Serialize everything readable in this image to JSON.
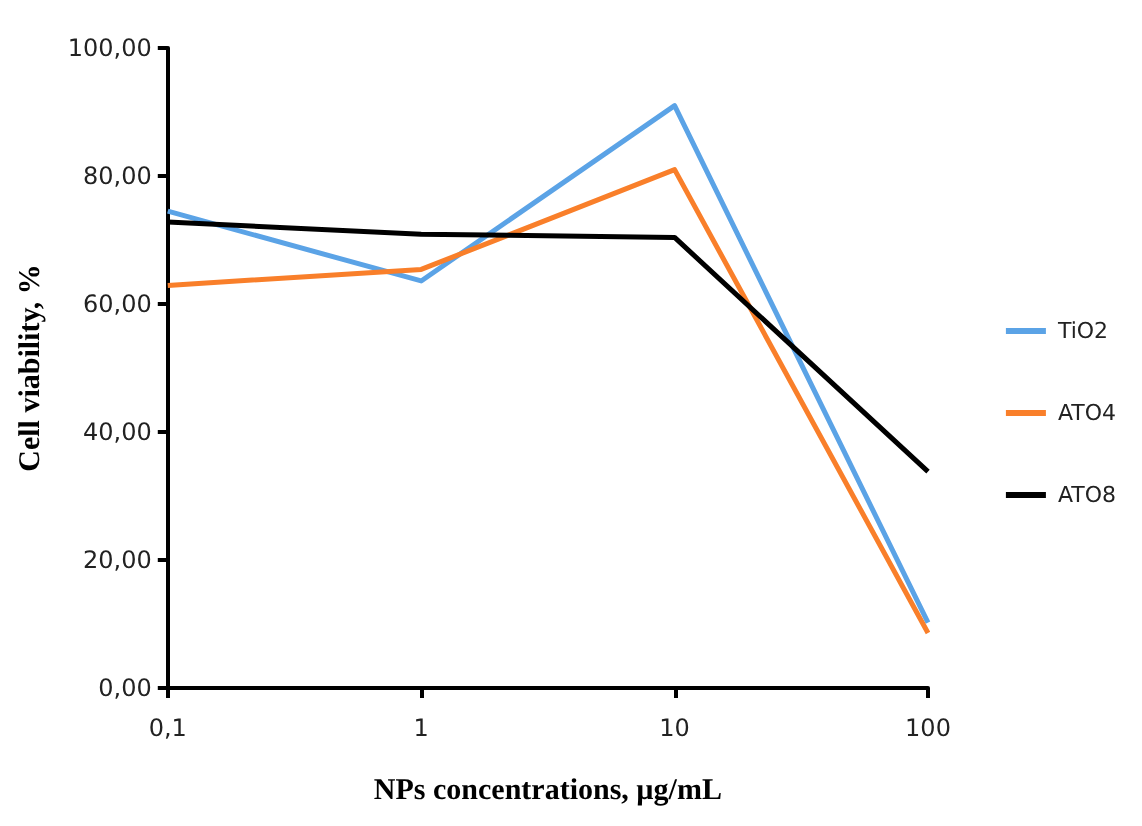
{
  "chart_data": {
    "type": "line",
    "xlabel": "NPs concentrations, µg/mL",
    "ylabel": "Cell viability, %",
    "categories": [
      "0,1",
      "1",
      "10",
      "100"
    ],
    "series": [
      {
        "name": "TiO2",
        "color": "#5ba3e6",
        "values": [
          74.5,
          63.6,
          91,
          10.2
        ]
      },
      {
        "name": "ATO4",
        "color": "#f97f2a",
        "values": [
          62.9,
          65.4,
          81,
          8.6
        ]
      },
      {
        "name": "ATO8",
        "color": "#000000",
        "values": [
          72.8,
          70.9,
          70.4,
          33.8
        ]
      }
    ],
    "ylim": [
      0,
      100
    ],
    "yticks": [
      {
        "value": 0,
        "label": "0,00"
      },
      {
        "value": 20,
        "label": "20,00"
      },
      {
        "value": 40,
        "label": "40,00"
      },
      {
        "value": 60,
        "label": "60,00"
      },
      {
        "value": 80,
        "label": "80,00"
      },
      {
        "value": 100,
        "label": "100,00"
      }
    ],
    "grid": false,
    "legend": "right",
    "marker": "none",
    "line_style": "solid"
  }
}
